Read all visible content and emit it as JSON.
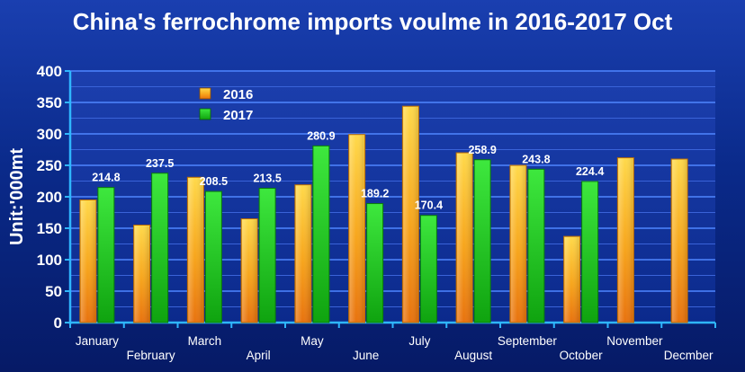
{
  "chart_data": {
    "type": "bar",
    "title": "China's ferrochrome imports voulme in 2016-2017 Oct",
    "ylabel": "Unit:'000mt",
    "xlabel": "",
    "ylim": [
      0,
      400
    ],
    "yticks": [
      0,
      50,
      100,
      150,
      200,
      250,
      300,
      350,
      400
    ],
    "categories": [
      "January",
      "February",
      "March",
      "April",
      "May",
      "June",
      "July",
      "August",
      "September",
      "October",
      "November",
      "Decmber"
    ],
    "series": [
      {
        "name": "2016",
        "color": "#f7b21a",
        "values": [
          195,
          155,
          231,
          165,
          219,
          299,
          344,
          270,
          250,
          137,
          262,
          260
        ],
        "labels_shown": false
      },
      {
        "name": "2017",
        "color": "#22cc22",
        "values": [
          214.8,
          237.5,
          208.5,
          213.5,
          280.9,
          189.2,
          170.4,
          258.9,
          243.8,
          224.4,
          null,
          null
        ],
        "labels_shown": true
      }
    ],
    "legend": "top-left",
    "grid": true
  }
}
